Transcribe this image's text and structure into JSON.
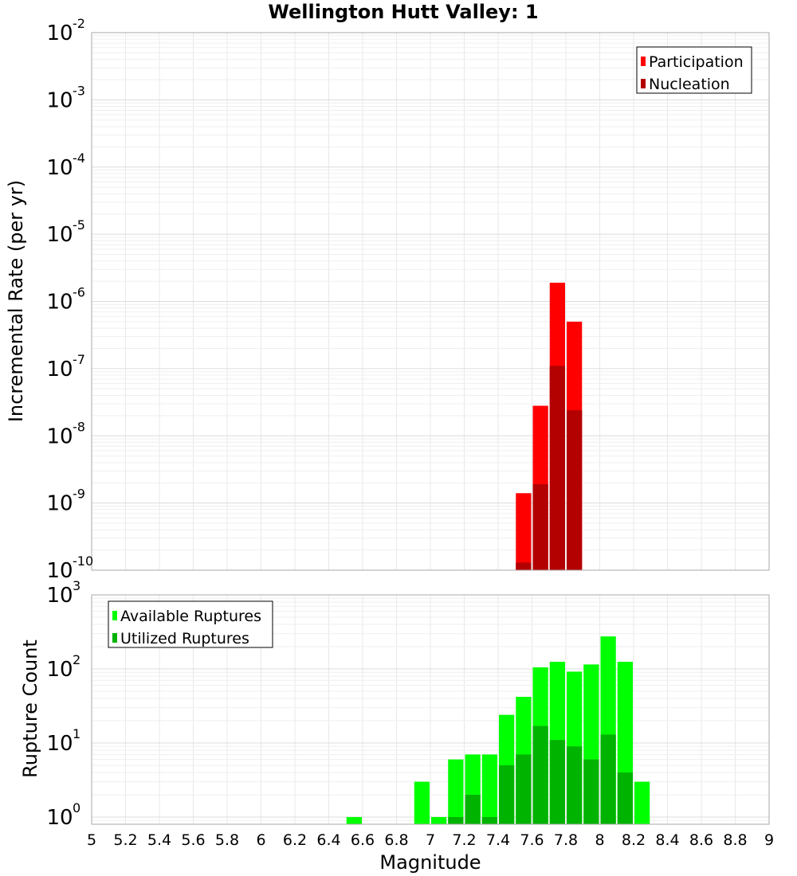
{
  "chart_data": [
    {
      "type": "bar",
      "title": "Wellington Hutt Valley: 1",
      "ylabel": "Incremental Rate (per yr)",
      "yscale": "log",
      "ylim": [
        1e-10,
        0.01
      ],
      "xlim": [
        5,
        9
      ],
      "y_tick_exponents": [
        "-10",
        "-9",
        "-8",
        "-7",
        "-6",
        "-5",
        "-4",
        "-3",
        "-2"
      ],
      "legend_position": "top-right",
      "series": [
        {
          "name": "Participation",
          "color": "#ff0000",
          "x": [
            7.55,
            7.65,
            7.75,
            7.85
          ],
          "values": [
            1.4e-09,
            2.8e-08,
            1.9e-06,
            5e-07
          ]
        },
        {
          "name": "Nucleation",
          "color": "#b30000",
          "x": [
            7.55,
            7.65,
            7.75,
            7.85
          ],
          "values": [
            1.3e-10,
            1.9e-09,
            1.1e-07,
            2.4e-08
          ]
        }
      ]
    },
    {
      "type": "bar",
      "xlabel": "Magnitude",
      "ylabel": "Rupture Count",
      "yscale": "log",
      "ylim": [
        0.8,
        1000
      ],
      "xlim": [
        5,
        9
      ],
      "y_tick_exponents": [
        "0",
        "1",
        "2",
        "3"
      ],
      "x_tick_labels": [
        "5",
        "5.2",
        "5.4",
        "5.6",
        "5.8",
        "6",
        "6.2",
        "6.4",
        "6.6",
        "6.8",
        "7",
        "7.2",
        "7.4",
        "7.6",
        "7.8",
        "8",
        "8.2",
        "8.4",
        "8.6",
        "8.8",
        "9"
      ],
      "legend_position": "top-left",
      "series": [
        {
          "name": "Available Ruptures",
          "color": "#00ff00",
          "x": [
            6.55,
            6.95,
            7.05,
            7.15,
            7.25,
            7.35,
            7.45,
            7.55,
            7.65,
            7.75,
            7.85,
            7.95,
            8.05,
            8.15,
            8.25
          ],
          "values": [
            1,
            3,
            1,
            6,
            7,
            7,
            24,
            42,
            105,
            125,
            92,
            115,
            275,
            125,
            3
          ]
        },
        {
          "name": "Utilized Ruptures",
          "color": "#00b300",
          "x": [
            7.15,
            7.25,
            7.35,
            7.45,
            7.55,
            7.65,
            7.75,
            7.85,
            7.95,
            8.05,
            8.15
          ],
          "values": [
            1,
            2,
            1,
            5,
            7,
            17,
            11,
            9,
            6,
            13,
            4
          ]
        }
      ]
    }
  ],
  "power_base": "10"
}
